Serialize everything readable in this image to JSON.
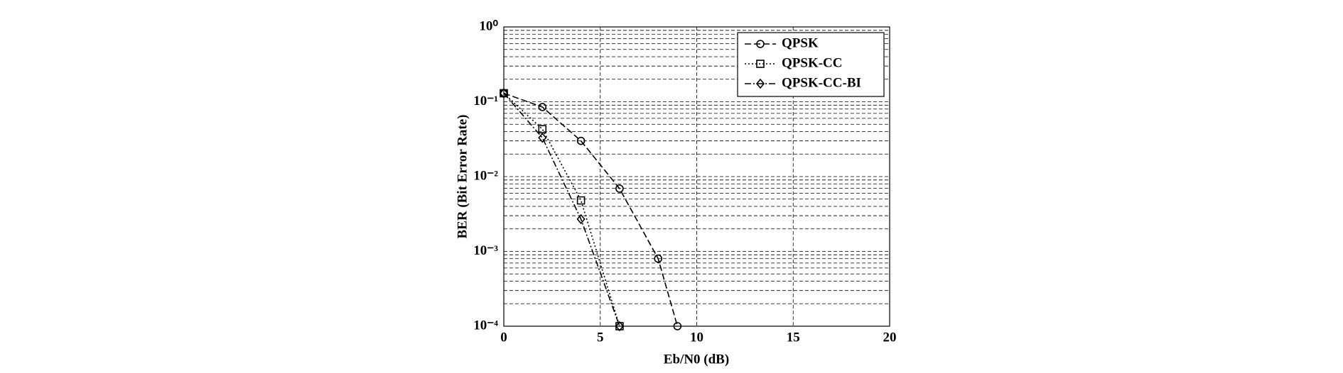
{
  "chart_data": {
    "type": "line",
    "xlabel": "Eb/N0 (dB)",
    "ylabel": "BER (Bit Error Rate)",
    "xlim": [
      0,
      20
    ],
    "xticks": [
      0,
      5,
      10,
      15,
      20
    ],
    "ylim": [
      0.0001,
      1
    ],
    "ylog": true,
    "yticks": [
      {
        "value": 0.0001,
        "label": "10⁻⁴"
      },
      {
        "value": 0.001,
        "label": "10⁻³"
      },
      {
        "value": 0.01,
        "label": "10⁻²"
      },
      {
        "value": 0.1,
        "label": "10⁻¹"
      },
      {
        "value": 1,
        "label": "10⁰"
      }
    ],
    "grid": true,
    "legend": "upper right",
    "series": [
      {
        "name": "QPSK",
        "color": "#000000",
        "linestyle": "dashed",
        "marker": "circle",
        "x": [
          0,
          2,
          4,
          6,
          8,
          9
        ],
        "values": [
          0.13,
          0.085,
          0.03,
          0.0069,
          0.0008,
          0.0001
        ]
      },
      {
        "name": "QPSK-CC",
        "color": "#000000",
        "linestyle": "dotted",
        "marker": "square",
        "x": [
          0,
          2,
          4,
          6
        ],
        "values": [
          0.13,
          0.043,
          0.0048,
          0.0001
        ]
      },
      {
        "name": "QPSK-CC-BI",
        "color": "#000000",
        "linestyle": "dashdot",
        "marker": "diamond",
        "x": [
          0,
          2,
          4,
          6
        ],
        "values": [
          0.13,
          0.033,
          0.0027,
          0.0001
        ]
      }
    ]
  }
}
